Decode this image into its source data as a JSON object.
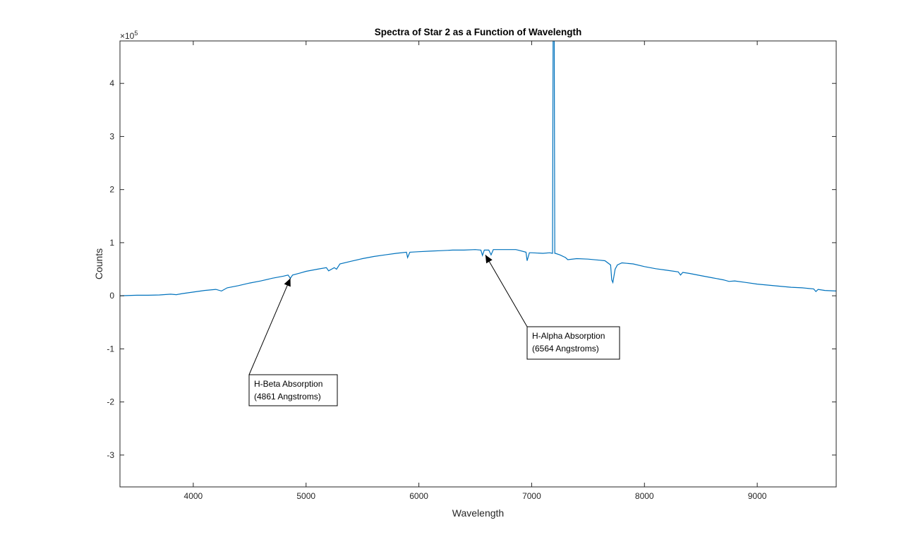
{
  "chart_data": {
    "type": "line",
    "title": "Spectra of Star 2 as a Function of Wavelength",
    "xlabel": "Wavelength",
    "ylabel": "Counts",
    "xlim": [
      3350,
      9700
    ],
    "ylim": [
      -3.6,
      4.8
    ],
    "y_exponent_label": "×10",
    "y_exponent_power": "5",
    "xticks": [
      4000,
      5000,
      6000,
      7000,
      8000,
      9000
    ],
    "yticks": [
      -3,
      -2,
      -1,
      0,
      1,
      2,
      3,
      4
    ],
    "grid": false,
    "line_color": "#0072BD",
    "series": [
      {
        "x": [
          3350,
          3500,
          3600,
          3700,
          3800,
          3850,
          3900,
          4000,
          4100,
          4200,
          4250,
          4300,
          4400,
          4500,
          4600,
          4700,
          4800,
          4840,
          4861,
          4880,
          4950,
          5000,
          5100,
          5180,
          5200,
          5250,
          5270,
          5300,
          5400,
          5500,
          5600,
          5700,
          5800,
          5890,
          5900,
          5920,
          6000,
          6100,
          6200,
          6300,
          6400,
          6500,
          6550,
          6564,
          6580,
          6620,
          6640,
          6660,
          6700,
          6800,
          6860,
          6880,
          6950,
          6960,
          6980,
          7000,
          7100,
          7160,
          7185,
          7190,
          7200,
          7205,
          7210,
          7250,
          7300,
          7320,
          7400,
          7500,
          7600,
          7650,
          7700,
          7710,
          7720,
          7740,
          7760,
          7800,
          7900,
          8000,
          8100,
          8200,
          8300,
          8320,
          8340,
          8400,
          8500,
          8600,
          8700,
          8750,
          8800,
          8900,
          9000,
          9100,
          9200,
          9300,
          9400,
          9500,
          9520,
          9540,
          9600,
          9700
        ],
        "y": [
          0.0,
          0.01,
          0.01,
          0.015,
          0.03,
          0.02,
          0.04,
          0.07,
          0.1,
          0.12,
          0.09,
          0.15,
          0.19,
          0.24,
          0.28,
          0.33,
          0.37,
          0.39,
          0.33,
          0.39,
          0.43,
          0.46,
          0.5,
          0.53,
          0.47,
          0.53,
          0.5,
          0.6,
          0.65,
          0.7,
          0.74,
          0.77,
          0.8,
          0.82,
          0.72,
          0.82,
          0.83,
          0.84,
          0.85,
          0.86,
          0.86,
          0.87,
          0.86,
          0.76,
          0.86,
          0.86,
          0.77,
          0.87,
          0.87,
          0.87,
          0.87,
          0.86,
          0.82,
          0.66,
          0.81,
          0.81,
          0.8,
          0.81,
          0.8,
          4.8,
          4.8,
          0.8,
          0.8,
          0.77,
          0.72,
          0.68,
          0.7,
          0.69,
          0.67,
          0.66,
          0.58,
          0.3,
          0.25,
          0.5,
          0.58,
          0.62,
          0.6,
          0.55,
          0.51,
          0.48,
          0.45,
          0.39,
          0.44,
          0.42,
          0.38,
          0.34,
          0.3,
          0.27,
          0.28,
          0.25,
          0.22,
          0.2,
          0.18,
          0.16,
          0.15,
          0.13,
          0.08,
          0.12,
          0.1,
          0.09
        ]
      }
    ],
    "annotations": [
      {
        "lines": [
          "H-Beta Absorption",
          "(4861 Angstroms)"
        ],
        "target": [
          4861,
          0.33
        ]
      },
      {
        "lines": [
          "H-Alpha Absorption",
          "(6564 Angstroms)"
        ],
        "target": [
          6590,
          0.77
        ]
      }
    ]
  }
}
